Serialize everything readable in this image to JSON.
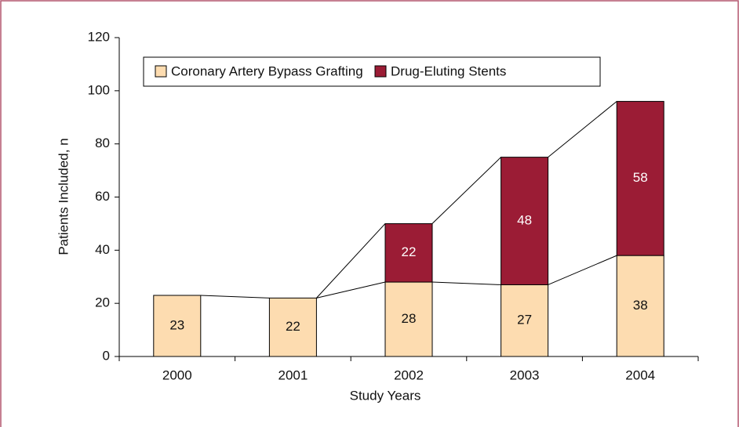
{
  "chart_data": {
    "type": "stacked-bar",
    "categories": [
      "2000",
      "2001",
      "2002",
      "2003",
      "2004"
    ],
    "series": [
      {
        "name": "Coronary Artery Bypass Grafting",
        "color": "#fddcb0",
        "values": [
          23,
          22,
          28,
          27,
          38
        ]
      },
      {
        "name": "Drug-Eluting Stents",
        "color": "#9b1c35",
        "values": [
          null,
          null,
          22,
          48,
          58
        ]
      }
    ],
    "ylim": [
      0,
      120
    ],
    "yticks": [
      0,
      20,
      40,
      60,
      80,
      100,
      120
    ],
    "xlabel": "Study Years",
    "ylabel": "Patients Included, n",
    "legend": "top"
  }
}
